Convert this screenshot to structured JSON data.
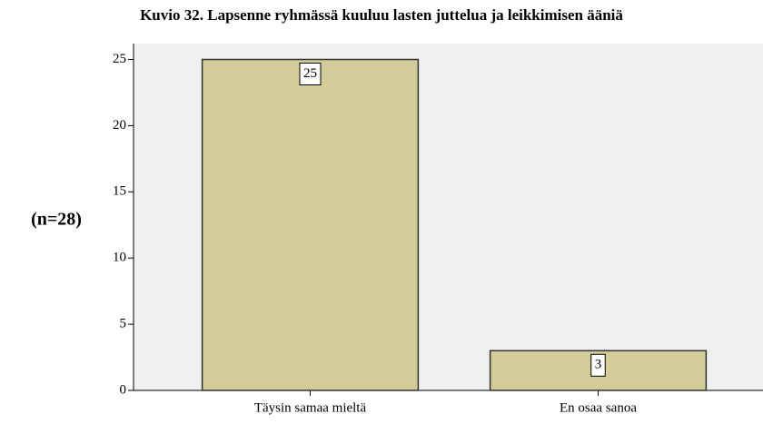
{
  "chart_data": {
    "type": "bar",
    "title": "Kuvio 32. Lapsenne ryhmässä kuuluu lasten juttelua ja leikkimisen ääniä",
    "y_label": "(n=28)",
    "categories": [
      "Täysin samaa mieltä",
      "En osaa sanoa"
    ],
    "values": [
      25,
      3
    ],
    "color": "#d3cb98",
    "ylim": [
      0,
      26.2
    ],
    "yticks": [
      0,
      5,
      10,
      15,
      20,
      25
    ],
    "grid": false
  }
}
